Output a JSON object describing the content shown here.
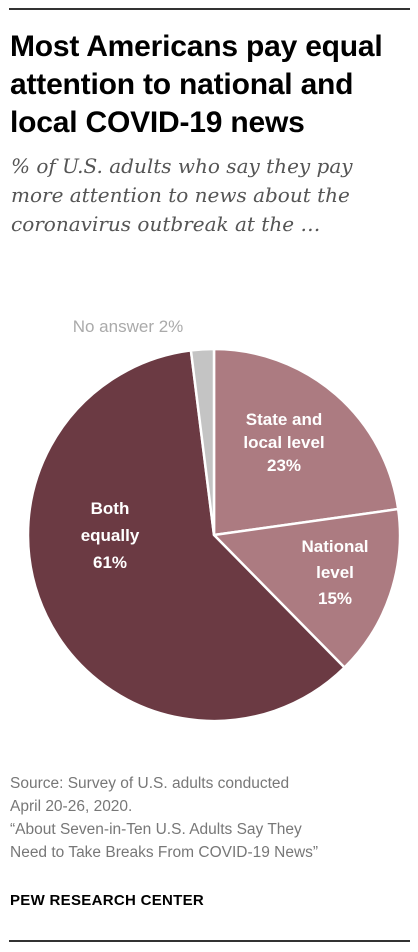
{
  "header": {
    "title": "Most Americans pay equal attention to national and local COVID-19 news",
    "subtitle": "% of U.S. adults who say they pay more attention to news about the coronavirus outbreak at the …"
  },
  "chart_data": {
    "type": "pie",
    "slices": [
      {
        "label_lines": [
          "State and",
          "local level",
          "23%"
        ],
        "value": 23,
        "color": "#ac7b81"
      },
      {
        "label_lines": [
          "National",
          "level",
          "15%"
        ],
        "value": 15,
        "color": "#ac7b81"
      },
      {
        "label_lines": [
          "Both",
          "equally",
          "61%"
        ],
        "value": 61,
        "color": "#6b3a43"
      },
      {
        "label_lines": [
          "No answer 2%"
        ],
        "value": 2,
        "color": "#c4c4c4"
      }
    ]
  },
  "footer": {
    "source_lines": [
      "Source: Survey of U.S. adults conducted",
      "April 20-26, 2020.",
      "“About Seven-in-Ten U.S. Adults Say They",
      "Need to Take Breaks From COVID-19 News”"
    ],
    "org": "PEW RESEARCH CENTER"
  }
}
